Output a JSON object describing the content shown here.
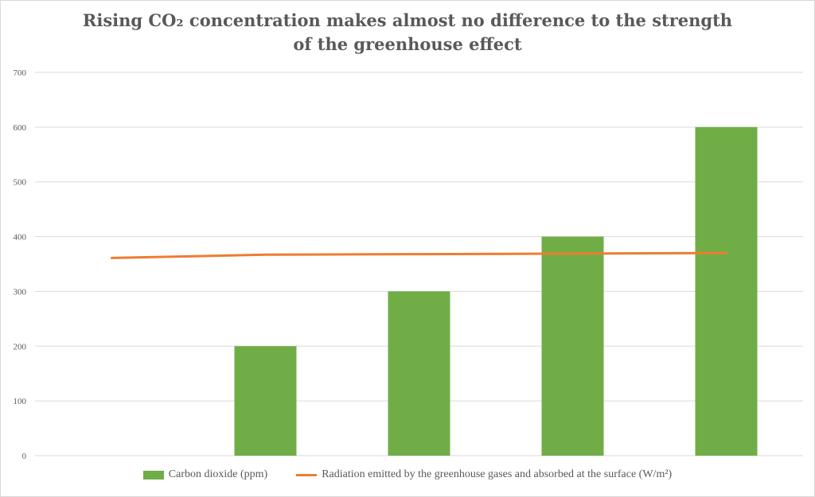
{
  "chart_data": {
    "type": "bar",
    "title_lines": [
      "Rising CO₂ concentration makes almost no difference to the strength",
      "of the greenhouse effect"
    ],
    "categories": [
      "",
      "",
      "",
      "",
      ""
    ],
    "series": [
      {
        "name": "Carbon dioxide (ppm)",
        "type": "bar",
        "color": "#70ad47",
        "values": [
          0,
          200,
          300,
          400,
          600
        ]
      },
      {
        "name": "Radiation emitted by the greenhouse gases and absorbed at the surface (W/m²)",
        "type": "line",
        "color": "#ed7d31",
        "values": [
          361,
          367,
          368,
          369,
          370
        ]
      }
    ],
    "y_ticks": [
      "0",
      "100",
      "200",
      "300",
      "400",
      "500",
      "600",
      "700"
    ],
    "ylim": [
      0,
      700
    ],
    "grid": true,
    "legend_position": "bottom"
  }
}
